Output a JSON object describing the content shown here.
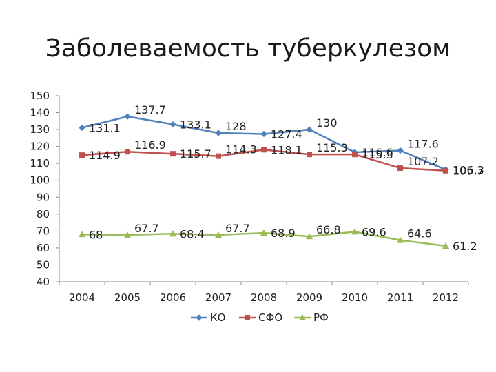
{
  "chart_data": {
    "type": "line",
    "title": "Заболеваемость туберкулезом",
    "categories": [
      "2004",
      "2005",
      "2006",
      "2007",
      "2008",
      "2009",
      "2010",
      "2011",
      "2012"
    ],
    "ylim": [
      40,
      150
    ],
    "yticks": [
      "40",
      "50",
      "60",
      "70",
      "80",
      "90",
      "100",
      "110",
      "120",
      "130",
      "140",
      "150"
    ],
    "grid": false,
    "legend_position": "bottom",
    "series": [
      {
        "name": "КО",
        "marker": "diamond",
        "color": "#4f81bd",
        "values": [
          131.1,
          137.7,
          133.1,
          128,
          127.4,
          130,
          116.6,
          117.6,
          106.3
        ],
        "labels": [
          "131.1",
          "137.7",
          "133.1",
          "128",
          "127.4",
          "130",
          "116.6",
          "117.6",
          "106.3"
        ]
      },
      {
        "name": "СФО",
        "marker": "square",
        "color": "#c0504d",
        "values": [
          114.9,
          116.9,
          115.7,
          114.3,
          118.1,
          115.3,
          115.3,
          107.2,
          105.7
        ],
        "labels": [
          "114.9",
          "116.9",
          "115.7",
          "114.3",
          "118.1",
          "115.3",
          "115.3",
          "107.2",
          "105.7"
        ]
      },
      {
        "name": "РФ",
        "marker": "triangle",
        "color": "#9bbb59",
        "values": [
          68,
          67.7,
          68.4,
          67.7,
          68.9,
          66.8,
          69.6,
          64.6,
          61.2
        ],
        "labels": [
          "68",
          "67.7",
          "68.4",
          "67.7",
          "68.9",
          "66.8",
          "69.6",
          "64.6",
          "61.2"
        ]
      }
    ]
  }
}
